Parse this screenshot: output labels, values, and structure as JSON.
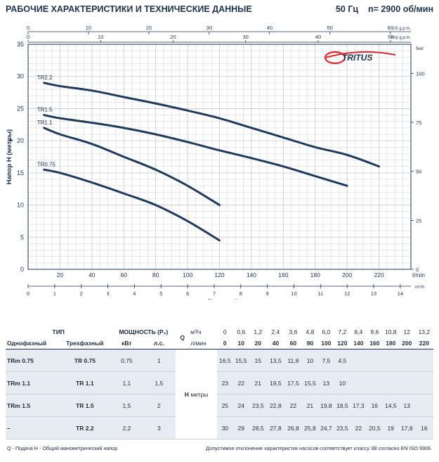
{
  "header": {
    "title": "РАБОЧИЕ ХАРАКТЕРИСТИКИ И ТЕХНИЧЕСКИЕ ДАННЫЕ",
    "freq": "50 Гц",
    "speed": "n= 2900 об/мин"
  },
  "brand": {
    "name": "TRITUS",
    "accent": "#e2262d"
  },
  "colors": {
    "curve": "#1f3a5f",
    "grid": "#c4c8cc",
    "axis": "#1f3350",
    "shade": "#e6ecf2"
  },
  "chart_data": {
    "type": "line",
    "ylabel": "Напор H (метры)",
    "xlabel": "Подача Q",
    "x_unit": "l/min",
    "xlim": [
      0,
      240
    ],
    "ylim": [
      0,
      35
    ],
    "grid": true,
    "x_ticks": [
      20,
      40,
      60,
      80,
      100,
      120,
      140,
      160,
      180,
      200,
      220
    ],
    "y_ticks": [
      0,
      5,
      10,
      15,
      20,
      25,
      30,
      35
    ],
    "m3h_unit": "m³/h",
    "m3h_ticks": [
      "0",
      "1",
      "2",
      "3",
      "4",
      "5",
      "6",
      "7",
      "8",
      "9",
      "10",
      "11",
      "12",
      "13",
      "14"
    ],
    "usgpm_unit": "US g.p.m.",
    "usgpm_ticks": [
      "0",
      "10",
      "20",
      "30",
      "40",
      "50",
      "60"
    ],
    "impgpm_unit": "Imp g.p.m.",
    "impgpm_ticks": [
      "0",
      "10",
      "20",
      "30",
      "40",
      "50"
    ],
    "feet_unit": "feet",
    "feet_ticks": [
      "0",
      "25",
      "50",
      "75",
      "100"
    ],
    "series": [
      {
        "name": "TR0.75",
        "x": [
          10,
          20,
          40,
          60,
          80,
          100,
          120
        ],
        "y": [
          15.5,
          15,
          13.5,
          11.8,
          10,
          7.5,
          4.5
        ]
      },
      {
        "name": "TR1.1",
        "x": [
          10,
          20,
          40,
          60,
          80,
          100,
          120
        ],
        "y": [
          22,
          21,
          19.5,
          17.5,
          15.5,
          13,
          10
        ]
      },
      {
        "name": "TR1.5",
        "x": [
          10,
          20,
          40,
          60,
          80,
          100,
          120,
          140,
          160,
          180,
          200
        ],
        "y": [
          24,
          23.5,
          22.8,
          22,
          21,
          19.8,
          18.5,
          17.3,
          16,
          14.5,
          13
        ]
      },
      {
        "name": "TR2.2",
        "x": [
          10,
          20,
          40,
          60,
          80,
          100,
          120,
          140,
          160,
          180,
          200,
          220
        ],
        "y": [
          29,
          28.5,
          27.8,
          26.8,
          25.8,
          24.7,
          23.5,
          22,
          20.5,
          19,
          17.8,
          16
        ]
      }
    ]
  },
  "table": {
    "type_label": "ТИП",
    "power_label": "МОЩНОСТЬ (P₂)",
    "single_label": "Однофазный",
    "three_label": "Трехфазный",
    "kw_label": "кВт",
    "hp_label": "л.с.",
    "q_label": "Q",
    "m3h_label": "м³/ч",
    "lmin_label": "л/мин",
    "h_label": "H",
    "h_unit": "метры",
    "q_m3h": [
      "0",
      "0,6",
      "1,2",
      "2,4",
      "3,6",
      "4,8",
      "6,0",
      "7,2",
      "8,4",
      "9,6",
      "10,8",
      "12",
      "13,2"
    ],
    "q_lmin": [
      "0",
      "10",
      "20",
      "40",
      "60",
      "80",
      "100",
      "120",
      "140",
      "160",
      "180",
      "200",
      "220"
    ],
    "rows": [
      {
        "single": "TRm 0.75",
        "three": "TR 0.75",
        "kw": "0,75",
        "hp": "1",
        "h": [
          "16,5",
          "15,5",
          "15",
          "13,5",
          "11,8",
          "10",
          "7,5",
          "4,5",
          "",
          "",
          "",
          "",
          ""
        ]
      },
      {
        "single": "TRm 1.1",
        "three": "TR 1.1",
        "kw": "1,1",
        "hp": "1,5",
        "h": [
          "23",
          "22",
          "21",
          "19,5",
          "17,5",
          "15,5",
          "13",
          "10",
          "",
          "",
          "",
          "",
          ""
        ]
      },
      {
        "single": "TRm 1.5",
        "three": "TR 1.5",
        "kw": "1,5",
        "hp": "2",
        "h": [
          "25",
          "24",
          "23,5",
          "22,8",
          "22",
          "21",
          "19,8",
          "18,5",
          "17,3",
          "16",
          "14,5",
          "13",
          ""
        ]
      },
      {
        "single": "–",
        "three": "TR 2.2",
        "kw": "2,2",
        "hp": "3",
        "h": [
          "30",
          "29",
          "28,5",
          "27,8",
          "26,8",
          "25,8",
          "24,7",
          "23,5",
          "22",
          "20,5",
          "19",
          "17,8",
          "16"
        ]
      }
    ]
  },
  "footer": {
    "legend": "Q - Подача   H - Общий манометрический напор",
    "note": "Допустимое отклонение характеристик насосов соответствует классу 3B согласно EN ISO 9906."
  }
}
